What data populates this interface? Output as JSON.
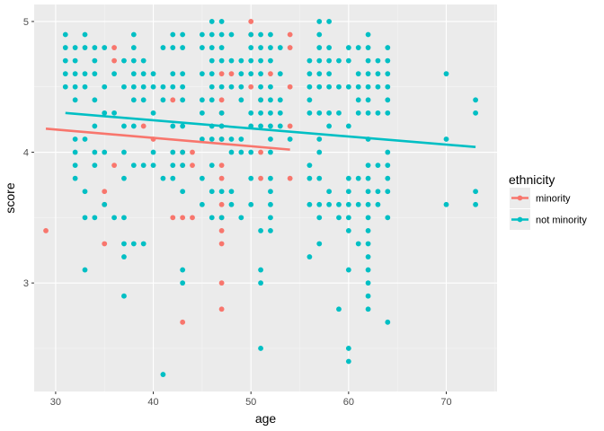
{
  "chart_data": {
    "type": "scatter",
    "xlabel": "age",
    "ylabel": "score",
    "xlim": [
      27.8,
      75.2
    ],
    "ylim": [
      2.17,
      5.13
    ],
    "x_ticks": [
      30,
      40,
      50,
      60,
      70
    ],
    "y_ticks": [
      3,
      4,
      5
    ],
    "grid": true,
    "legend": {
      "title": "ethnicity",
      "placement": "right",
      "entries": [
        "minority",
        "not minority"
      ]
    },
    "series": [
      {
        "name": "minority",
        "color": "#F8766D",
        "points": [
          [
            29,
            3.4
          ],
          [
            35,
            3.3
          ],
          [
            35,
            3.6
          ],
          [
            35,
            3.7
          ],
          [
            36,
            3.9
          ],
          [
            36,
            4.7
          ],
          [
            36,
            4.8
          ],
          [
            39,
            4.2
          ],
          [
            40,
            4.1
          ],
          [
            42,
            3.5
          ],
          [
            42,
            4.4
          ],
          [
            43,
            2.7
          ],
          [
            43,
            3.5
          ],
          [
            43,
            3.9
          ],
          [
            43,
            4.0
          ],
          [
            44,
            3.5
          ],
          [
            44,
            3.9
          ],
          [
            44,
            4.0
          ],
          [
            47,
            2.8
          ],
          [
            47,
            3.0
          ],
          [
            47,
            3.3
          ],
          [
            47,
            3.4
          ],
          [
            47,
            3.5
          ],
          [
            47,
            3.6
          ],
          [
            47,
            3.8
          ],
          [
            47,
            3.9
          ],
          [
            47,
            4.1
          ],
          [
            47,
            4.2
          ],
          [
            47,
            4.3
          ],
          [
            47,
            4.4
          ],
          [
            47,
            4.6
          ],
          [
            48,
            4.6
          ],
          [
            50,
            4.9
          ],
          [
            50,
            5.0
          ],
          [
            50,
            4.5
          ],
          [
            51,
            3.8
          ],
          [
            51,
            4.0
          ],
          [
            51,
            4.4
          ],
          [
            52,
            4.6
          ],
          [
            54,
            3.8
          ],
          [
            54,
            4.2
          ],
          [
            54,
            4.5
          ],
          [
            54,
            4.8
          ],
          [
            54,
            4.9
          ]
        ],
        "trend": {
          "x": [
            29,
            54
          ],
          "y": [
            4.18,
            4.02
          ]
        }
      },
      {
        "name": "not minority",
        "color": "#00BFC4",
        "points": [
          [
            31,
            4.5
          ],
          [
            31,
            4.6
          ],
          [
            31,
            4.7
          ],
          [
            31,
            4.8
          ],
          [
            31,
            4.9
          ],
          [
            32,
            3.8
          ],
          [
            32,
            3.9
          ],
          [
            32,
            4.0
          ],
          [
            32,
            4.1
          ],
          [
            32,
            4.4
          ],
          [
            32,
            4.5
          ],
          [
            32,
            4.6
          ],
          [
            32,
            4.7
          ],
          [
            32,
            4.8
          ],
          [
            33,
            3.1
          ],
          [
            33,
            3.5
          ],
          [
            33,
            3.7
          ],
          [
            33,
            4.1
          ],
          [
            33,
            4.5
          ],
          [
            33,
            4.6
          ],
          [
            33,
            4.8
          ],
          [
            33,
            4.9
          ],
          [
            34,
            3.5
          ],
          [
            34,
            3.9
          ],
          [
            34,
            4.0
          ],
          [
            34,
            4.2
          ],
          [
            34,
            4.4
          ],
          [
            34,
            4.6
          ],
          [
            34,
            4.7
          ],
          [
            34,
            4.8
          ],
          [
            35,
            3.6
          ],
          [
            35,
            4.0
          ],
          [
            35,
            4.3
          ],
          [
            35,
            4.5
          ],
          [
            35,
            4.8
          ],
          [
            36,
            3.5
          ],
          [
            36,
            4.3
          ],
          [
            36,
            4.6
          ],
          [
            37,
            2.9
          ],
          [
            37,
            3.2
          ],
          [
            37,
            3.3
          ],
          [
            37,
            3.5
          ],
          [
            37,
            3.8
          ],
          [
            37,
            4.0
          ],
          [
            37,
            4.2
          ],
          [
            37,
            4.5
          ],
          [
            37,
            4.7
          ],
          [
            38,
            3.3
          ],
          [
            38,
            3.9
          ],
          [
            38,
            4.2
          ],
          [
            38,
            4.4
          ],
          [
            38,
            4.5
          ],
          [
            38,
            4.6
          ],
          [
            38,
            4.7
          ],
          [
            38,
            4.8
          ],
          [
            38,
            4.9
          ],
          [
            39,
            3.3
          ],
          [
            39,
            3.9
          ],
          [
            39,
            4.4
          ],
          [
            39,
            4.5
          ],
          [
            39,
            4.6
          ],
          [
            39,
            4.7
          ],
          [
            40,
            3.9
          ],
          [
            40,
            4.0
          ],
          [
            40,
            4.3
          ],
          [
            40,
            4.5
          ],
          [
            40,
            4.6
          ],
          [
            41,
            2.3
          ],
          [
            41,
            3.8
          ],
          [
            41,
            4.4
          ],
          [
            41,
            4.5
          ],
          [
            41,
            4.8
          ],
          [
            42,
            3.8
          ],
          [
            42,
            3.9
          ],
          [
            42,
            4.0
          ],
          [
            42,
            4.2
          ],
          [
            42,
            4.5
          ],
          [
            42,
            4.6
          ],
          [
            42,
            4.8
          ],
          [
            42,
            4.9
          ],
          [
            43,
            3.0
          ],
          [
            43,
            3.1
          ],
          [
            43,
            3.7
          ],
          [
            43,
            3.9
          ],
          [
            43,
            4.0
          ],
          [
            43,
            4.2
          ],
          [
            43,
            4.4
          ],
          [
            43,
            4.5
          ],
          [
            43,
            4.6
          ],
          [
            43,
            4.8
          ],
          [
            43,
            4.9
          ],
          [
            45,
            3.6
          ],
          [
            45,
            3.8
          ],
          [
            45,
            4.1
          ],
          [
            45,
            4.3
          ],
          [
            45,
            4.4
          ],
          [
            45,
            4.6
          ],
          [
            45,
            4.8
          ],
          [
            45,
            4.9
          ],
          [
            46,
            3.5
          ],
          [
            46,
            3.7
          ],
          [
            46,
            3.9
          ],
          [
            46,
            4.1
          ],
          [
            46,
            4.2
          ],
          [
            46,
            4.4
          ],
          [
            46,
            4.5
          ],
          [
            46,
            4.6
          ],
          [
            46,
            4.7
          ],
          [
            46,
            4.8
          ],
          [
            46,
            4.9
          ],
          [
            46,
            5.0
          ],
          [
            47,
            3.5
          ],
          [
            47,
            3.7
          ],
          [
            47,
            4.1
          ],
          [
            47,
            4.2
          ],
          [
            47,
            4.3
          ],
          [
            47,
            4.5
          ],
          [
            47,
            4.7
          ],
          [
            47,
            4.8
          ],
          [
            47,
            4.9
          ],
          [
            47,
            5.0
          ],
          [
            48,
            3.6
          ],
          [
            48,
            3.7
          ],
          [
            48,
            4.0
          ],
          [
            48,
            4.1
          ],
          [
            48,
            4.5
          ],
          [
            48,
            4.7
          ],
          [
            48,
            4.9
          ],
          [
            49,
            3.5
          ],
          [
            49,
            4.0
          ],
          [
            49,
            4.1
          ],
          [
            49,
            4.4
          ],
          [
            49,
            4.5
          ],
          [
            49,
            4.6
          ],
          [
            49,
            4.7
          ],
          [
            50,
            3.6
          ],
          [
            50,
            3.8
          ],
          [
            50,
            4.0
          ],
          [
            50,
            4.2
          ],
          [
            50,
            4.3
          ],
          [
            50,
            4.6
          ],
          [
            50,
            4.7
          ],
          [
            50,
            4.8
          ],
          [
            50,
            4.9
          ],
          [
            51,
            2.5
          ],
          [
            51,
            3.0
          ],
          [
            51,
            3.1
          ],
          [
            51,
            3.4
          ],
          [
            51,
            4.2
          ],
          [
            51,
            4.3
          ],
          [
            51,
            4.4
          ],
          [
            51,
            4.5
          ],
          [
            51,
            4.6
          ],
          [
            51,
            4.7
          ],
          [
            51,
            4.8
          ],
          [
            51,
            4.9
          ],
          [
            52,
            3.4
          ],
          [
            52,
            3.5
          ],
          [
            52,
            3.6
          ],
          [
            52,
            3.7
          ],
          [
            52,
            3.8
          ],
          [
            52,
            4.0
          ],
          [
            52,
            4.1
          ],
          [
            52,
            4.2
          ],
          [
            52,
            4.3
          ],
          [
            52,
            4.4
          ],
          [
            52,
            4.5
          ],
          [
            52,
            4.7
          ],
          [
            52,
            4.8
          ],
          [
            52,
            4.9
          ],
          [
            53,
            4.2
          ],
          [
            53,
            4.3
          ],
          [
            53,
            4.4
          ],
          [
            53,
            4.6
          ],
          [
            53,
            4.8
          ],
          [
            54,
            4.1
          ],
          [
            56,
            3.2
          ],
          [
            56,
            3.6
          ],
          [
            56,
            3.8
          ],
          [
            56,
            3.9
          ],
          [
            56,
            4.3
          ],
          [
            56,
            4.4
          ],
          [
            56,
            4.5
          ],
          [
            56,
            4.6
          ],
          [
            56,
            4.7
          ],
          [
            57,
            3.3
          ],
          [
            57,
            3.5
          ],
          [
            57,
            3.6
          ],
          [
            57,
            3.8
          ],
          [
            57,
            4.0
          ],
          [
            57,
            4.1
          ],
          [
            57,
            4.3
          ],
          [
            57,
            4.5
          ],
          [
            57,
            4.6
          ],
          [
            57,
            4.7
          ],
          [
            57,
            4.8
          ],
          [
            57,
            4.9
          ],
          [
            57,
            5.0
          ],
          [
            58,
            3.6
          ],
          [
            58,
            3.7
          ],
          [
            58,
            4.2
          ],
          [
            58,
            4.3
          ],
          [
            58,
            4.5
          ],
          [
            58,
            4.6
          ],
          [
            58,
            4.7
          ],
          [
            58,
            4.8
          ],
          [
            58,
            5.0
          ],
          [
            59,
            2.8
          ],
          [
            59,
            3.5
          ],
          [
            59,
            3.6
          ],
          [
            59,
            4.3
          ],
          [
            59,
            4.5
          ],
          [
            59,
            4.7
          ],
          [
            60,
            2.4
          ],
          [
            60,
            2.5
          ],
          [
            60,
            3.1
          ],
          [
            60,
            3.4
          ],
          [
            60,
            3.5
          ],
          [
            60,
            3.6
          ],
          [
            60,
            3.7
          ],
          [
            60,
            3.8
          ],
          [
            60,
            4.2
          ],
          [
            60,
            4.5
          ],
          [
            60,
            4.7
          ],
          [
            60,
            4.8
          ],
          [
            61,
            3.3
          ],
          [
            61,
            3.6
          ],
          [
            61,
            3.8
          ],
          [
            61,
            4.3
          ],
          [
            61,
            4.4
          ],
          [
            61,
            4.5
          ],
          [
            61,
            4.6
          ],
          [
            61,
            4.8
          ],
          [
            62,
            2.8
          ],
          [
            62,
            2.9
          ],
          [
            62,
            3.0
          ],
          [
            62,
            3.1
          ],
          [
            62,
            3.2
          ],
          [
            62,
            3.3
          ],
          [
            62,
            3.4
          ],
          [
            62,
            3.5
          ],
          [
            62,
            3.6
          ],
          [
            62,
            3.7
          ],
          [
            62,
            3.8
          ],
          [
            62,
            3.9
          ],
          [
            62,
            4.1
          ],
          [
            62,
            4.3
          ],
          [
            62,
            4.4
          ],
          [
            62,
            4.5
          ],
          [
            62,
            4.6
          ],
          [
            62,
            4.7
          ],
          [
            62,
            4.8
          ],
          [
            62,
            4.9
          ],
          [
            63,
            3.6
          ],
          [
            63,
            3.7
          ],
          [
            63,
            3.9
          ],
          [
            63,
            4.3
          ],
          [
            63,
            4.5
          ],
          [
            63,
            4.6
          ],
          [
            63,
            4.7
          ],
          [
            64,
            2.7
          ],
          [
            64,
            3.5
          ],
          [
            64,
            3.7
          ],
          [
            64,
            3.8
          ],
          [
            64,
            3.9
          ],
          [
            64,
            4.0
          ],
          [
            64,
            4.3
          ],
          [
            64,
            4.4
          ],
          [
            64,
            4.5
          ],
          [
            64,
            4.6
          ],
          [
            64,
            4.7
          ],
          [
            64,
            4.8
          ],
          [
            70,
            3.6
          ],
          [
            70,
            4.1
          ],
          [
            70,
            4.6
          ],
          [
            73,
            3.6
          ],
          [
            73,
            3.7
          ],
          [
            73,
            4.3
          ],
          [
            73,
            4.4
          ]
        ],
        "trend": {
          "x": [
            31,
            73
          ],
          "y": [
            4.3,
            4.04
          ]
        }
      }
    ]
  }
}
